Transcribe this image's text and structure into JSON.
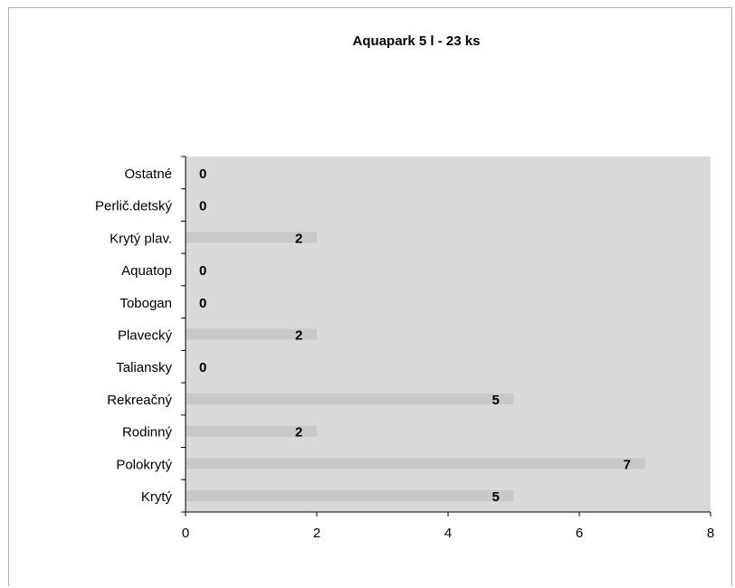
{
  "chart_data": {
    "type": "bar",
    "orientation": "horizontal",
    "title": "Aquapark 5 l - 23 ks",
    "categories": [
      "Krytý",
      "Polokrytý",
      "Rodinný",
      "Rekreačný",
      "Taliansky",
      "Plavecký",
      "Tobogan",
      "Aquatop",
      "Krytý plav.",
      "Perlič.detský",
      "Ostatné"
    ],
    "values": [
      5,
      7,
      2,
      5,
      0,
      2,
      0,
      0,
      2,
      0,
      0
    ],
    "xlim": [
      0,
      8
    ],
    "xticks": [
      0,
      2,
      4,
      6,
      8
    ],
    "xlabel": "",
    "ylabel": "",
    "grid": false,
    "legend": "none",
    "colors": {
      "plot_background": "#d9d9d9",
      "bar": "#c8c8c8",
      "axis": "#000000"
    }
  }
}
